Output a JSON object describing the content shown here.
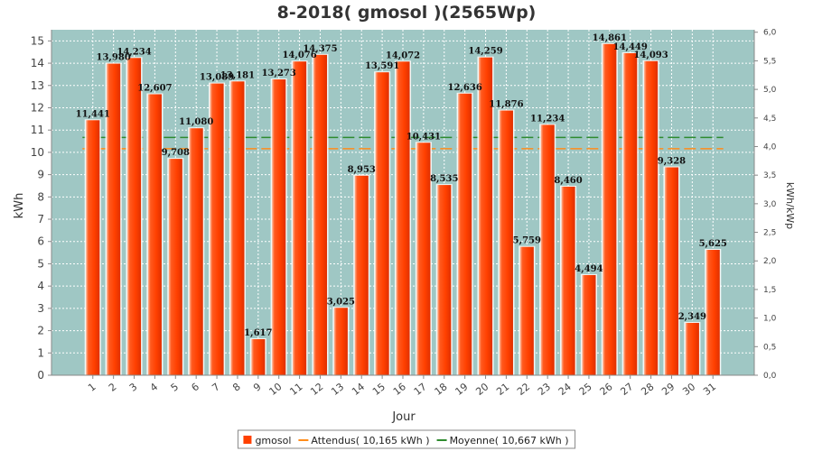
{
  "chart_data": {
    "type": "bar",
    "title": "8-2018( gmosol )(2565Wp)",
    "xlabel": "Jour",
    "ylabel": "kWh",
    "y2label": "kWh/kWp",
    "ylim": [
      0,
      15.5
    ],
    "yticks": [
      0,
      1,
      2,
      3,
      4,
      5,
      6,
      7,
      8,
      9,
      10,
      11,
      12,
      13,
      14,
      15
    ],
    "y2ticks": [
      "0,0",
      "0,5",
      "1,0",
      "1,5",
      "2,0",
      "2,5",
      "3,0",
      "3,5",
      "4,0",
      "4,5",
      "5,0",
      "5,5",
      "6,0"
    ],
    "y2lim": [
      0,
      6.043
    ],
    "grid": true,
    "legend_position": "bottom",
    "categories": [
      "1",
      "2",
      "3",
      "4",
      "5",
      "6",
      "7",
      "8",
      "9",
      "10",
      "11",
      "12",
      "13",
      "14",
      "15",
      "16",
      "17",
      "18",
      "19",
      "20",
      "21",
      "22",
      "23",
      "24",
      "25",
      "26",
      "27",
      "28",
      "29",
      "30",
      "31"
    ],
    "series": [
      {
        "name": "gmosol",
        "color": "#ff4000",
        "values": [
          11.441,
          13.98,
          14.234,
          12.607,
          9.708,
          11.08,
          13.089,
          13.181,
          1.617,
          13.273,
          14.076,
          14.375,
          3.025,
          8.953,
          13.591,
          14.072,
          10.431,
          8.535,
          12.636,
          14.259,
          11.876,
          5.759,
          11.234,
          8.46,
          4.494,
          14.861,
          14.449,
          14.093,
          9.328,
          2.349,
          5.625
        ],
        "labels": [
          "11,441",
          "13,980",
          "14,234",
          "12,607",
          "9,708",
          "11,080",
          "13,089",
          "13,181",
          "1,617",
          "13,273",
          "14,076",
          "14,375",
          "3,025",
          "8,953",
          "13,591",
          "14,072",
          "10,431",
          "8,535",
          "12,636",
          "14,259",
          "11,876",
          "5,759",
          "11,234",
          "8,460",
          "4,494",
          "14,861",
          "14,449",
          "14,093",
          "9,328",
          "2,349",
          "5,625"
        ]
      }
    ],
    "reference_lines": [
      {
        "name": "Attendus( 10,165 kWh )",
        "value": 10.165,
        "color": "#ff8c1a"
      },
      {
        "name": "Moyenne( 10,667 kWh )",
        "value": 10.667,
        "color": "#2e8b2e"
      }
    ],
    "colors": {
      "plot_background": "#9fc7c4",
      "grid": "#ffffff"
    }
  }
}
